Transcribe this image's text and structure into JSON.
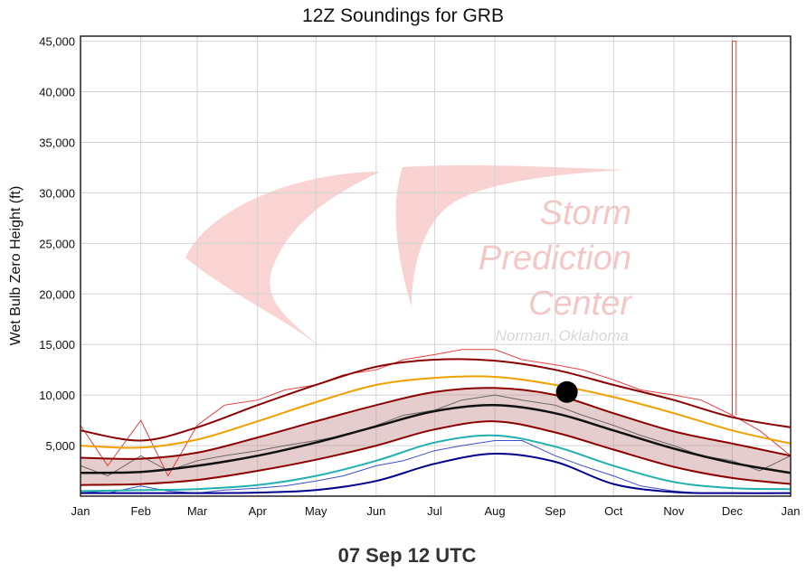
{
  "chart_data": {
    "type": "line",
    "title": "12Z Soundings for GRB",
    "xlabel": "",
    "ylabel": "Wet Bulb Zero Height (ft)",
    "footer": "07 Sep 12 UTC",
    "x_categories": [
      "Jan",
      "Feb",
      "Mar",
      "Apr",
      "May",
      "Jun",
      "Jul",
      "Aug",
      "Sep",
      "Oct",
      "Nov",
      "Dec",
      "Jan"
    ],
    "ylim": [
      0,
      45500
    ],
    "yticks": [
      5000,
      10000,
      15000,
      20000,
      25000,
      30000,
      35000,
      40000,
      45000
    ],
    "ytick_labels": [
      "5,000",
      "10,000",
      "15,000",
      "20,000",
      "25,000",
      "30,000",
      "35,000",
      "40,000",
      "45,000"
    ],
    "grid": true,
    "watermark": {
      "line1": "Storm",
      "line2": "Prediction",
      "line3": "Center",
      "line4": "Norman, Oklahoma"
    },
    "colors": {
      "max_line": "#8b0000",
      "p90": "#f0a000",
      "p75": "#8b0000",
      "mean": "#111111",
      "p25": "#8b0000",
      "p10": "#20b0b0",
      "min_line": "#00008b",
      "band_fill": "#c89090",
      "obs_max": "#e02020",
      "obs_mean": "#555555",
      "obs_min": "#2030c0"
    },
    "series": [
      {
        "id": "max",
        "x": [
          "2020-01-01",
          "2020-02-01",
          "2020-03-01",
          "2020-04-01",
          "2020-05-01",
          "2020-06-01",
          "2020-07-01",
          "2020-08-01",
          "2020-09-01",
          "2020-10-01",
          "2020-11-01",
          "2020-12-01",
          "2020-12-31"
        ],
        "y": [
          6500,
          5500,
          6800,
          9000,
          11000,
          12800,
          13500,
          13400,
          12500,
          11000,
          9500,
          7800,
          6800
        ]
      },
      {
        "id": "p90",
        "x": [
          "2020-01-01",
          "2020-02-01",
          "2020-03-01",
          "2020-04-01",
          "2020-05-01",
          "2020-06-01",
          "2020-07-01",
          "2020-08-01",
          "2020-09-01",
          "2020-10-01",
          "2020-11-01",
          "2020-12-01",
          "2020-12-31"
        ],
        "y": [
          5000,
          4800,
          5600,
          7400,
          9300,
          11000,
          11700,
          11800,
          11000,
          9800,
          8200,
          6500,
          5200
        ]
      },
      {
        "id": "p75",
        "x": [
          "2020-01-01",
          "2020-02-01",
          "2020-03-01",
          "2020-04-01",
          "2020-05-01",
          "2020-06-01",
          "2020-07-01",
          "2020-08-01",
          "2020-09-01",
          "2020-10-01",
          "2020-11-01",
          "2020-12-01",
          "2020-12-31"
        ],
        "y": [
          3800,
          3700,
          4300,
          5800,
          7400,
          9000,
          10300,
          10700,
          10000,
          8200,
          6400,
          5200,
          4000
        ]
      },
      {
        "id": "mean",
        "x": [
          "2020-01-01",
          "2020-02-01",
          "2020-03-01",
          "2020-04-01",
          "2020-05-01",
          "2020-06-01",
          "2020-07-01",
          "2020-08-01",
          "2020-09-01",
          "2020-10-01",
          "2020-11-01",
          "2020-12-01",
          "2020-12-31"
        ],
        "y": [
          2300,
          2400,
          3000,
          4000,
          5300,
          6900,
          8400,
          9000,
          8200,
          6500,
          4700,
          3300,
          2300
        ]
      },
      {
        "id": "p25",
        "x": [
          "2020-01-01",
          "2020-02-01",
          "2020-03-01",
          "2020-04-01",
          "2020-05-01",
          "2020-06-01",
          "2020-07-01",
          "2020-08-01",
          "2020-09-01",
          "2020-10-01",
          "2020-11-01",
          "2020-12-01",
          "2020-12-31"
        ],
        "y": [
          1100,
          1200,
          1600,
          2500,
          3600,
          5000,
          6600,
          7400,
          6300,
          4600,
          2900,
          1800,
          1200
        ]
      },
      {
        "id": "p10",
        "x": [
          "2020-01-01",
          "2020-02-01",
          "2020-03-01",
          "2020-04-01",
          "2020-05-01",
          "2020-06-01",
          "2020-07-01",
          "2020-08-01",
          "2020-09-01",
          "2020-10-01",
          "2020-11-01",
          "2020-12-01",
          "2020-12-31"
        ],
        "y": [
          500,
          600,
          700,
          1100,
          2000,
          3500,
          5300,
          6000,
          4900,
          3000,
          1400,
          800,
          700
        ]
      },
      {
        "id": "min",
        "x": [
          "2020-01-01",
          "2020-02-01",
          "2020-03-01",
          "2020-04-01",
          "2020-05-01",
          "2020-06-01",
          "2020-07-01",
          "2020-08-01",
          "2020-09-01",
          "2020-10-01",
          "2020-11-01",
          "2020-12-01",
          "2020-12-31"
        ],
        "y": [
          300,
          300,
          300,
          350,
          600,
          1500,
          3200,
          4200,
          3400,
          1200,
          400,
          300,
          300
        ]
      }
    ],
    "observed": [
      {
        "id": "obs_max",
        "x": [
          "2020-01-01",
          "2020-01-15",
          "2020-02-01",
          "2020-02-15",
          "2020-03-01",
          "2020-03-15",
          "2020-04-01",
          "2020-04-15",
          "2020-05-01",
          "2020-05-15",
          "2020-06-01",
          "2020-06-15",
          "2020-07-01",
          "2020-07-15",
          "2020-08-01",
          "2020-08-15",
          "2020-09-01",
          "2020-09-15",
          "2020-10-01",
          "2020-10-15",
          "2020-11-01",
          "2020-11-15",
          "2020-12-01",
          "2020-12-15",
          "2020-12-31"
        ],
        "y": [
          7000,
          3000,
          7500,
          2000,
          7000,
          9000,
          9500,
          10500,
          11000,
          12000,
          12500,
          13500,
          14000,
          14500,
          14500,
          13500,
          13000,
          12500,
          11500,
          10500,
          10000,
          9500,
          8000,
          6500,
          4000
        ]
      },
      {
        "id": "obs_max_spike",
        "x": [
          "2020-12-01",
          "2020-12-01",
          "2020-12-03",
          "2020-12-03"
        ],
        "y": [
          8000,
          45000,
          45000,
          8000
        ]
      },
      {
        "id": "obs_mean",
        "x": [
          "2020-01-01",
          "2020-01-15",
          "2020-02-01",
          "2020-02-15",
          "2020-03-01",
          "2020-03-15",
          "2020-04-01",
          "2020-04-15",
          "2020-05-01",
          "2020-05-15",
          "2020-06-01",
          "2020-06-15",
          "2020-07-01",
          "2020-07-15",
          "2020-08-01",
          "2020-08-15",
          "2020-09-01",
          "2020-09-15",
          "2020-10-01",
          "2020-10-15",
          "2020-11-01",
          "2020-11-15",
          "2020-12-01",
          "2020-12-15",
          "2020-12-31"
        ],
        "y": [
          3000,
          2000,
          4000,
          2500,
          3500,
          4000,
          4500,
          5000,
          5500,
          6000,
          7000,
          8000,
          8500,
          9500,
          10000,
          9500,
          9000,
          8000,
          7000,
          6000,
          5000,
          4000,
          3500,
          2500,
          4000
        ]
      },
      {
        "id": "obs_min",
        "x": [
          "2020-01-01",
          "2020-01-15",
          "2020-02-01",
          "2020-02-15",
          "2020-03-01",
          "2020-03-15",
          "2020-04-01",
          "2020-04-15",
          "2020-05-01",
          "2020-05-15",
          "2020-06-01",
          "2020-06-15",
          "2020-07-01",
          "2020-07-15",
          "2020-08-01",
          "2020-08-15",
          "2020-09-01",
          "2020-09-15",
          "2020-10-01",
          "2020-10-15",
          "2020-11-01",
          "2020-11-15",
          "2020-12-01",
          "2020-12-15",
          "2020-12-31"
        ],
        "y": [
          500,
          300,
          1000,
          500,
          300,
          600,
          800,
          1000,
          1500,
          2000,
          3000,
          3500,
          4500,
          5000,
          5500,
          5500,
          4000,
          3000,
          2000,
          1000,
          500,
          300,
          300,
          300,
          300
        ]
      }
    ],
    "current_point": {
      "x": "2020-09-07",
      "y": 10300
    }
  }
}
